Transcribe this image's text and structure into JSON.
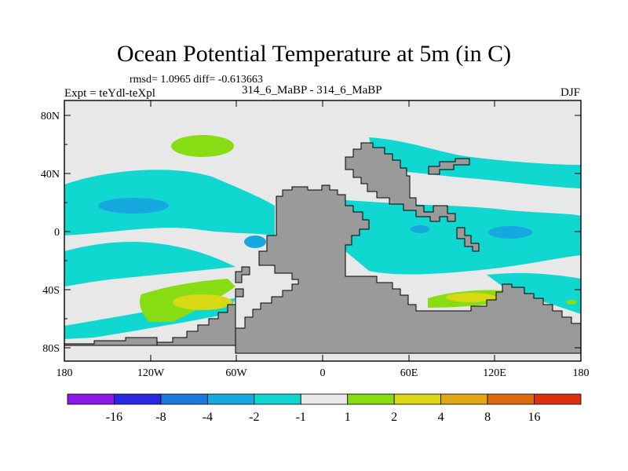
{
  "figure": {
    "title": "Ocean Potential Temperature at 5m (in C)",
    "stats_text": "rmsd= 1.0965 diff= -0.613663",
    "left_label": "Expt = teYdl-teXpl",
    "center_label": "314_6_MaBP - 314_6_MaBP",
    "right_label": "DJF"
  },
  "axes": {
    "lat_labels": [
      "80N",
      "40N",
      "0",
      "40S",
      "80S"
    ],
    "lon_labels": [
      "180",
      "120W",
      "60W",
      "0",
      "60E",
      "120E",
      "180"
    ]
  },
  "colorbar": {
    "levels": [
      "-16",
      "-8",
      "-4",
      "-2",
      "-1",
      "1",
      "2",
      "4",
      "8",
      "16"
    ],
    "colors": [
      "#8a18e8",
      "#2828e0",
      "#1c78dc",
      "#18a8e0",
      "#10d8d0",
      "#e8e8e8",
      "#88dc14",
      "#d8d814",
      "#e0a818",
      "#e06a10",
      "#dc3010"
    ]
  },
  "colors": {
    "land": "#9a9a9a",
    "neutral": "#e8e8e8",
    "cyan": "#10d8d0",
    "blue": "#18a8e0",
    "green": "#88dc14",
    "yellow": "#d8d814"
  }
}
